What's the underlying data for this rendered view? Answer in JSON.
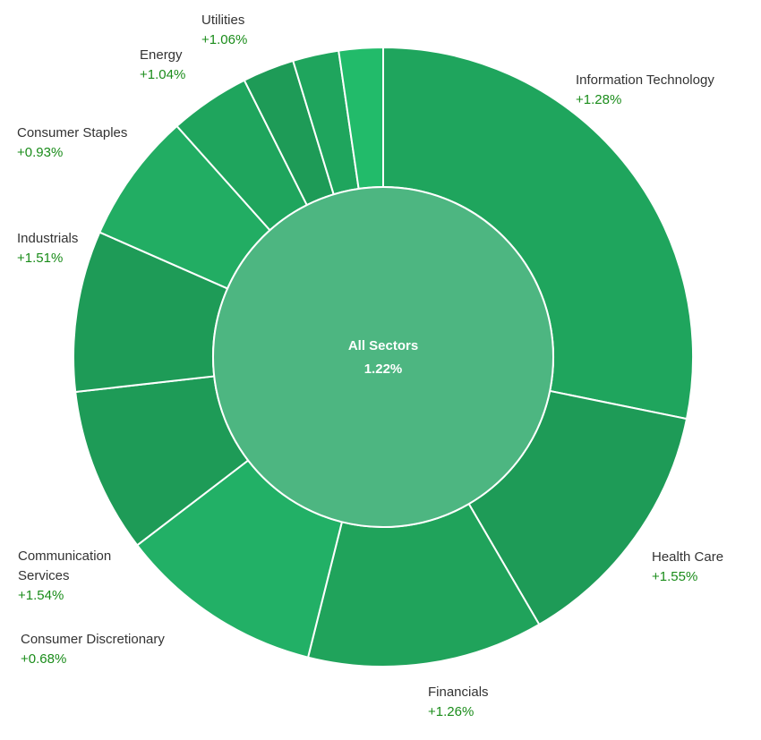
{
  "chart_data": {
    "type": "sunburst",
    "center": {
      "name": "All Sectors",
      "change": {
        "value": 1.22,
        "label": "1.22%"
      },
      "color": "#4db681"
    },
    "categories": [
      "Information Technology",
      "Health Care",
      "Financials",
      "Consumer Discretionary",
      "Communication Services",
      "Industrials",
      "Consumer Staples",
      "Energy",
      "Utilities",
      null,
      null
    ],
    "values": [
      28.2,
      13.4,
      12.3,
      10.7,
      8.6,
      8.4,
      6.8,
      4.2,
      2.7,
      2.4,
      2.3
    ],
    "changes": [
      {
        "value": 1.28,
        "label": "+1.28%"
      },
      {
        "value": 1.55,
        "label": "+1.55%"
      },
      {
        "value": 1.26,
        "label": "+1.26%"
      },
      {
        "value": 0.68,
        "label": "+0.68%"
      },
      {
        "value": 1.54,
        "label": "+1.54%"
      },
      {
        "value": 1.51,
        "label": "+1.51%"
      },
      {
        "value": 0.93,
        "label": "+0.93%"
      },
      {
        "value": 1.04,
        "label": "+1.04%"
      },
      {
        "value": 1.06,
        "label": "+1.06%"
      },
      null,
      null
    ],
    "colors": [
      "#1fa55d",
      "#1e9b57",
      "#20a35b",
      "#22b066",
      "#1e9b57",
      "#1e9b57",
      "#22ad63",
      "#1fa55d",
      "#1e9b57",
      "#1fa55d",
      "#22bb6a"
    ]
  }
}
